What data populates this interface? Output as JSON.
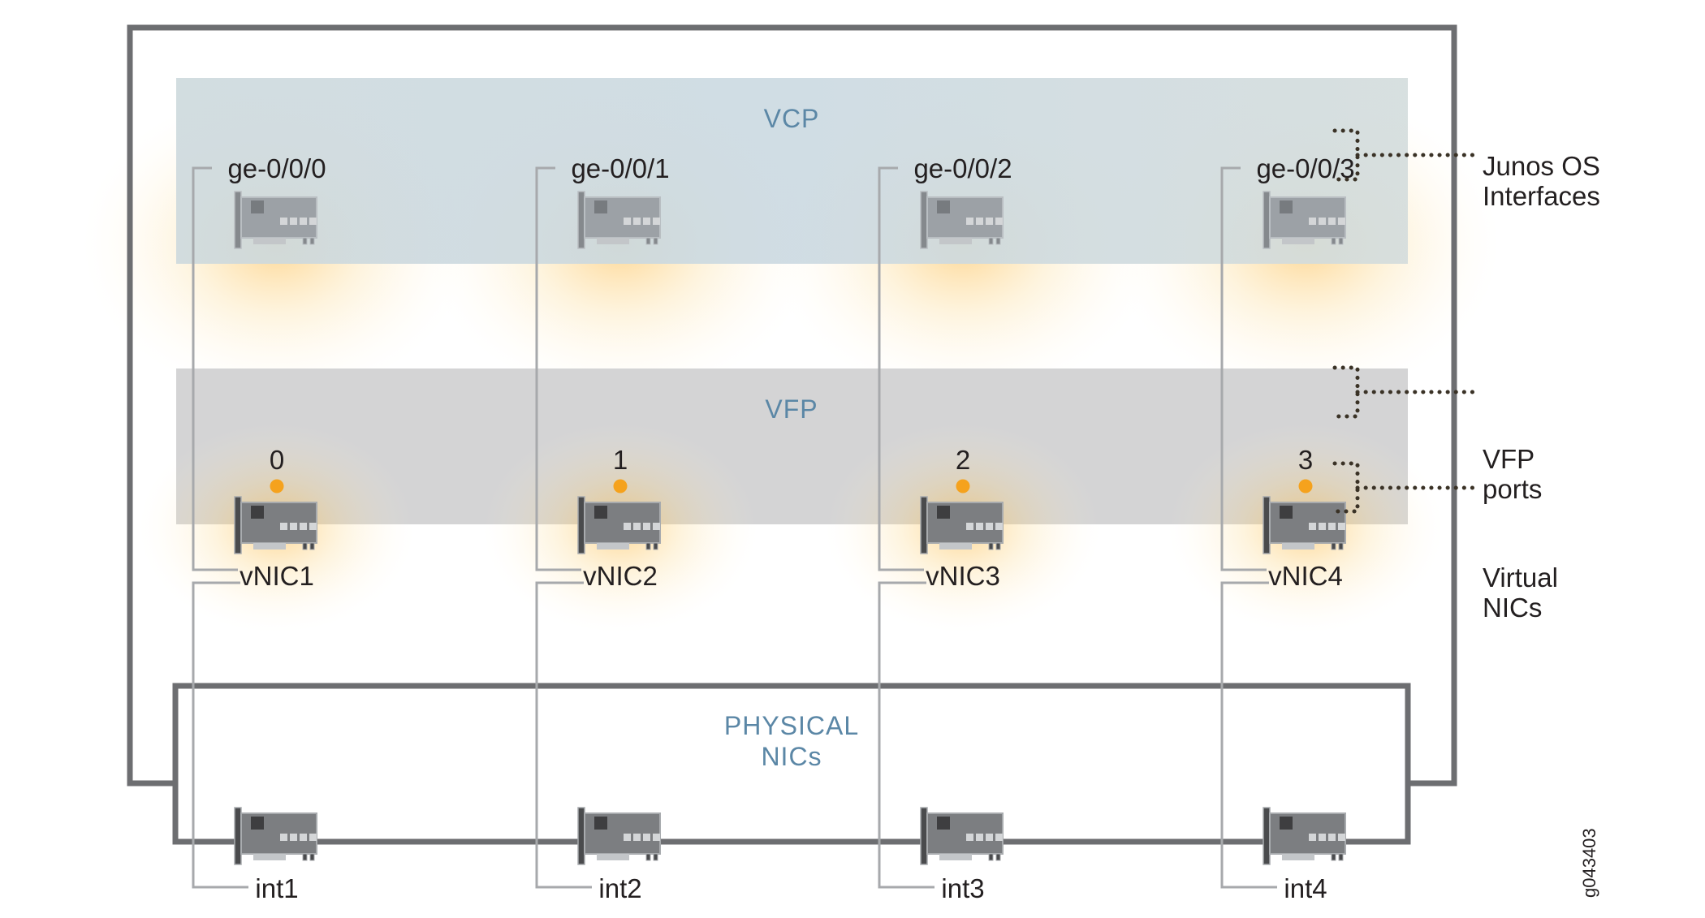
{
  "sections": {
    "vcp": "VCP",
    "vfp": "VFP",
    "physical_line1": "PHYSICAL",
    "physical_line2": "NICs"
  },
  "columns": [
    {
      "interface": "ge-0/0/0",
      "port": "0",
      "vnic": "vNIC1",
      "physical": "int1"
    },
    {
      "interface": "ge-0/0/1",
      "port": "1",
      "vnic": "vNIC2",
      "physical": "int2"
    },
    {
      "interface": "ge-0/0/2",
      "port": "2",
      "vnic": "vNIC3",
      "physical": "int3"
    },
    {
      "interface": "ge-0/0/3",
      "port": "3",
      "vnic": "vNIC4",
      "physical": "int4"
    }
  ],
  "annotations": {
    "junos_line1": "Junos OS",
    "junos_line2": "Interfaces",
    "vfp_line1": "VFP",
    "vfp_line2": "ports",
    "vnic_line1": "Virtual",
    "vnic_line2": "NICs"
  },
  "figure_id": "g043403",
  "colors": {
    "section_label": "#5b87a6",
    "port_dot": "#f5a21d",
    "frame": "#6d6e71",
    "connector_line": "#a7a9ac"
  }
}
